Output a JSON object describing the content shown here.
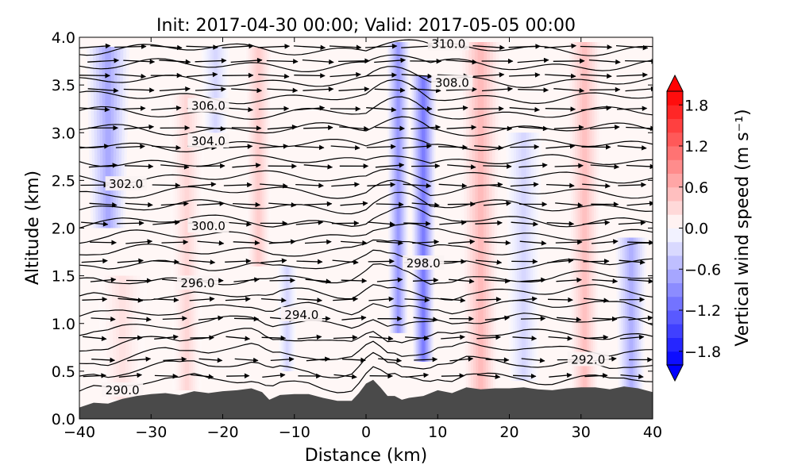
{
  "chart_data": {
    "type": "heatmap",
    "title": "Init: 2017-04-30 00:00; Valid: 2017-05-05 00:00",
    "xlabel": "Distance (km)",
    "ylabel": "Altitude (km)",
    "xlim": [
      -40,
      40
    ],
    "ylim": [
      0.0,
      4.0
    ],
    "x_ticks": [
      -40,
      -30,
      -20,
      -10,
      0,
      10,
      20,
      30,
      40
    ],
    "x_tick_labels": [
      "−40",
      "−30",
      "−20",
      "−10",
      "0",
      "10",
      "20",
      "30",
      "40"
    ],
    "y_ticks": [
      0.0,
      0.5,
      1.0,
      1.5,
      2.0,
      2.5,
      3.0,
      3.5,
      4.0
    ],
    "y_tick_labels": [
      "0.0",
      "0.5",
      "1.0",
      "1.5",
      "2.0",
      "2.5",
      "3.0",
      "3.5",
      "4.0"
    ],
    "colorbar": {
      "label": "Vertical wind speed (m s⁻¹)",
      "range": [
        -2.0,
        2.0
      ],
      "ticks": [
        1.8,
        1.2,
        0.6,
        0.0,
        -0.6,
        -1.2,
        -1.8
      ],
      "tick_labels": [
        "1.8",
        "1.2",
        "0.6",
        "0.0",
        "−0.6",
        "−1.2",
        "−1.8"
      ],
      "colors": {
        "negative": "#0000ff",
        "zero": "#ffffff",
        "positive": "#ff0000"
      }
    },
    "contour_labels": [
      {
        "text": "310.0",
        "x": 11.5,
        "z": 3.93
      },
      {
        "text": "308.0",
        "x": 12.0,
        "z": 3.52
      },
      {
        "text": "306.0",
        "x": -22.0,
        "z": 3.28
      },
      {
        "text": "304.0",
        "x": -22.0,
        "z": 2.91
      },
      {
        "text": "302.0",
        "x": -33.5,
        "z": 2.46
      },
      {
        "text": "300.0",
        "x": -22.0,
        "z": 2.02
      },
      {
        "text": "298.0",
        "x": 8.0,
        "z": 1.63
      },
      {
        "text": "296.0",
        "x": -23.5,
        "z": 1.42
      },
      {
        "text": "294.0",
        "x": -9.0,
        "z": 1.09
      },
      {
        "text": "292.0",
        "x": 31.0,
        "z": 0.62
      },
      {
        "text": "290.0",
        "x": -34.0,
        "z": 0.3
      }
    ],
    "terrain": {
      "x": [
        -40,
        -38,
        -36,
        -34,
        -32,
        -30,
        -28,
        -26,
        -24,
        -22,
        -20,
        -18,
        -16,
        -14.5,
        -13.5,
        -12,
        -10,
        -8,
        -6,
        -4,
        -2,
        -1,
        0,
        1,
        2,
        3,
        4,
        5,
        6,
        8,
        10,
        12,
        14,
        16,
        18,
        20,
        22,
        24,
        26,
        28,
        30,
        32,
        34,
        36,
        38,
        40
      ],
      "z": [
        0.12,
        0.17,
        0.16,
        0.21,
        0.24,
        0.26,
        0.27,
        0.25,
        0.29,
        0.27,
        0.29,
        0.3,
        0.32,
        0.28,
        0.2,
        0.25,
        0.26,
        0.26,
        0.22,
        0.19,
        0.19,
        0.27,
        0.37,
        0.41,
        0.33,
        0.24,
        0.24,
        0.2,
        0.22,
        0.24,
        0.3,
        0.27,
        0.33,
        0.31,
        0.32,
        0.32,
        0.33,
        0.31,
        0.3,
        0.32,
        0.33,
        0.33,
        0.31,
        0.34,
        0.32,
        0.28
      ]
    },
    "vertical_wind_features": [
      {
        "x": 4.5,
        "w": -0.9,
        "half_width_km": 1.6,
        "z_top": 3.95,
        "z_bottom": 0.9,
        "peak_z": 2.1
      },
      {
        "x": 8.0,
        "w": -1.15,
        "half_width_km": 1.8,
        "z_top": 3.6,
        "z_bottom": 0.6,
        "peak_z": 2.1
      },
      {
        "x": -36.0,
        "w": -0.75,
        "half_width_km": 3.0,
        "z_top": 3.9,
        "z_bottom": 2.0,
        "peak_z": 3.2
      },
      {
        "x": -21.0,
        "w": -0.35,
        "half_width_km": 2.0,
        "z_top": 3.9,
        "z_bottom": 3.0,
        "peak_z": 3.4
      },
      {
        "x": -25.0,
        "w": 0.35,
        "half_width_km": 2.5,
        "z_top": 3.4,
        "z_bottom": 0.3,
        "peak_z": 1.6
      },
      {
        "x": -15.0,
        "w": 0.45,
        "half_width_km": 2.0,
        "z_top": 3.9,
        "z_bottom": 1.6,
        "peak_z": 3.1
      },
      {
        "x": -11.0,
        "w": -0.35,
        "half_width_km": 1.4,
        "z_top": 1.6,
        "z_bottom": 0.5,
        "peak_z": 0.9
      },
      {
        "x": 16.0,
        "w": 0.6,
        "half_width_km": 3.0,
        "z_top": 3.95,
        "z_bottom": 0.3,
        "peak_z": 2.6
      },
      {
        "x": 22.0,
        "w": -0.35,
        "half_width_km": 2.5,
        "z_top": 3.0,
        "z_bottom": 0.4,
        "peak_z": 1.8
      },
      {
        "x": 30.5,
        "w": 0.55,
        "half_width_km": 2.5,
        "z_top": 3.95,
        "z_bottom": 0.3,
        "peak_z": 2.7
      },
      {
        "x": 37.0,
        "w": -0.7,
        "half_width_km": 2.2,
        "z_top": 1.9,
        "z_bottom": 0.3,
        "peak_z": 0.9
      },
      {
        "x": -34.0,
        "w": 0.25,
        "half_width_km": 3.5,
        "z_top": 1.5,
        "z_bottom": 0.2,
        "peak_z": 0.8
      }
    ],
    "wind_vectors": {
      "x_spacing_km": 5.0,
      "x_start_km": -37.5,
      "levels_km": [
        3.9,
        3.75,
        3.6,
        3.45,
        3.25,
        3.05,
        2.85,
        2.65,
        2.45,
        2.25,
        2.05,
        1.85,
        1.65,
        1.45,
        1.25,
        1.05,
        0.85,
        0.62,
        0.45
      ],
      "u_upper_m_s": 10.0,
      "u_lower_m_s": 6.0
    },
    "isentropes_K": {
      "base": 289.0,
      "step": 1.0,
      "count": 23
    }
  }
}
